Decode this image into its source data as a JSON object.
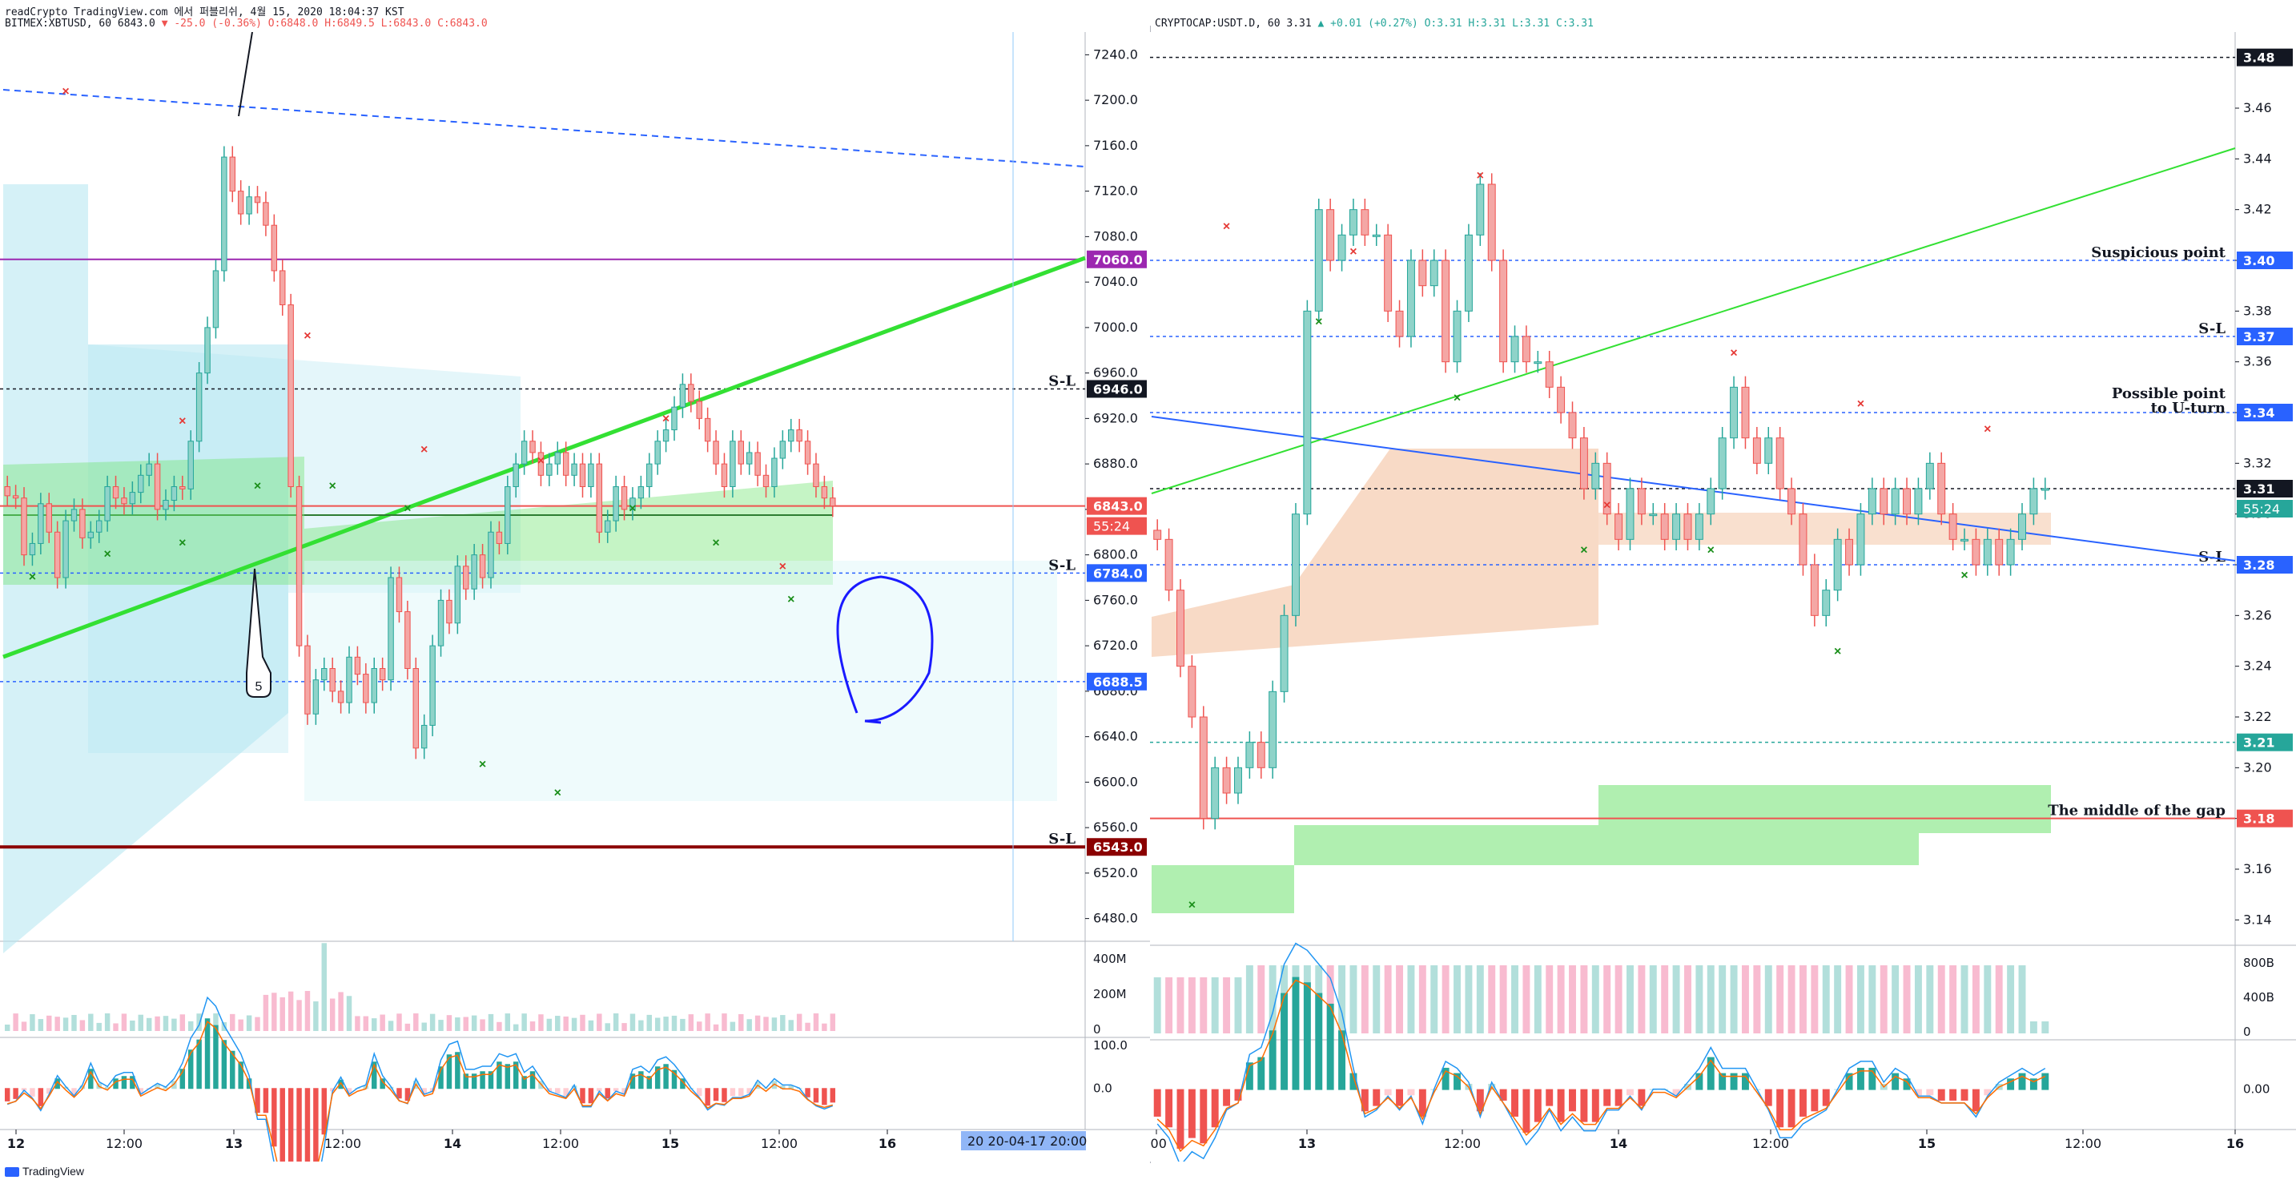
{
  "left_header": {
    "line1": "readCrypto TradingView.com 에서 퍼블리쉬, 4월 15, 2020 18:04:37 KST",
    "symbol": "BITMEX:XBTUSD, 60",
    "last": "6843.0",
    "change": "▼ -25.0 (-0.36%)",
    "ohlc": "O:6848.0 H:6849.5 L:6843.0 C:6843.0"
  },
  "right_header": {
    "symbol": "CRYPTOCAP:USDT.D, 60",
    "last": "3.31",
    "change": "▲ +0.01 (+0.27%)",
    "ohlc": "O:3.31 H:3.31 L:3.31 C:3.31"
  },
  "footer": {
    "brand": "TradingView"
  },
  "colors": {
    "up": "#26a69a",
    "down": "#ef5350",
    "purple": "#9c27b0",
    "green_line": "#00e600",
    "blue": "#2962ff",
    "darkred": "#8b0000"
  },
  "chart_data": [
    {
      "type": "candlestick",
      "symbol": "BITMEX:XBTUSD",
      "interval": "60",
      "ylim": [
        6460,
        7260
      ],
      "y_ticks": [
        6480,
        6520,
        6560,
        6600,
        6640,
        6680,
        6720,
        6760,
        6800,
        6840,
        6880,
        6920,
        6960,
        7000,
        7040,
        7080,
        7120,
        7160,
        7200,
        7240
      ],
      "x_labels": [
        "12",
        "12:00",
        "13",
        "12:00",
        "14",
        "12:00",
        "15",
        "12:00",
        "16"
      ],
      "cursor_label": "20 20-04-17   20:00",
      "close": [
        6852,
        6850,
        6800,
        6810,
        6845,
        6820,
        6780,
        6830,
        6840,
        6815,
        6820,
        6830,
        6860,
        6850,
        6845,
        6855,
        6870,
        6880,
        6840,
        6848,
        6860,
        6858,
        6900,
        6960,
        7000,
        7050,
        7150,
        7120,
        7100,
        7115,
        7110,
        7090,
        7050,
        7020,
        6860,
        6720,
        6660,
        6690,
        6700,
        6680,
        6670,
        6710,
        6695,
        6670,
        6700,
        6690,
        6780,
        6750,
        6700,
        6630,
        6650,
        6720,
        6760,
        6740,
        6790,
        6770,
        6800,
        6780,
        6820,
        6810,
        6860,
        6880,
        6900,
        6890,
        6870,
        6880,
        6890,
        6870,
        6880,
        6860,
        6880,
        6820,
        6830,
        6860,
        6840,
        6850,
        6860,
        6880,
        6900,
        6910,
        6930,
        6950,
        6935,
        6920,
        6900,
        6880,
        6860,
        6900,
        6880,
        6890,
        6870,
        6860,
        6885,
        6900,
        6910,
        6900,
        6880,
        6860,
        6850,
        6843
      ],
      "markers_red_x": [
        7200,
        6910,
        6985,
        6885,
        6875,
        6912,
        6782
      ],
      "markers_green_x": [
        6790,
        6810,
        6820,
        6870,
        6870,
        6850,
        6625,
        6600,
        6850,
        6820,
        6770
      ],
      "horizontal_levels": [
        {
          "value": 7060.0,
          "label": "7060.0",
          "color": "#9c27b0"
        },
        {
          "value": 6946.0,
          "label": "6946.0",
          "color": "#131722",
          "tag": "S-L"
        },
        {
          "value": 6843.0,
          "label": "6843.0",
          "color": "#ef5350"
        },
        {
          "value": 6784.0,
          "label": "6784.0",
          "color": "#2962ff",
          "tag": "S-L"
        },
        {
          "value": 6688.5,
          "label": "6688.5",
          "color": "#2962ff"
        },
        {
          "value": 6543.0,
          "label": "6543.0",
          "color": "#8b0000",
          "tag": "S-L"
        }
      ],
      "countdown": "55:24",
      "annotation_number": "5",
      "volume": {
        "y_ticks": [
          "400M",
          "200M",
          "0"
        ]
      },
      "macd": {
        "y_ticks": [
          "100.0",
          "0.0"
        ]
      }
    },
    {
      "type": "candlestick",
      "symbol": "CRYPTOCAP:USDT.D",
      "interval": "60",
      "ylim": [
        3.13,
        3.49
      ],
      "y_ticks": [
        3.14,
        3.16,
        3.18,
        3.2,
        3.22,
        3.24,
        3.26,
        3.28,
        3.3,
        3.32,
        3.34,
        3.36,
        3.38,
        3.4,
        3.42,
        3.44,
        3.46
      ],
      "x_labels": [
        ":00",
        "13",
        "12:00",
        "14",
        "12:00",
        "15",
        "12:00",
        "16"
      ],
      "close": [
        3.29,
        3.27,
        3.24,
        3.22,
        3.18,
        3.2,
        3.19,
        3.2,
        3.21,
        3.2,
        3.23,
        3.26,
        3.3,
        3.38,
        3.42,
        3.4,
        3.41,
        3.42,
        3.41,
        3.41,
        3.38,
        3.37,
        3.4,
        3.39,
        3.4,
        3.36,
        3.38,
        3.41,
        3.43,
        3.4,
        3.36,
        3.37,
        3.36,
        3.36,
        3.35,
        3.34,
        3.33,
        3.31,
        3.32,
        3.3,
        3.29,
        3.31,
        3.3,
        3.3,
        3.29,
        3.3,
        3.29,
        3.3,
        3.31,
        3.33,
        3.35,
        3.33,
        3.32,
        3.33,
        3.31,
        3.3,
        3.28,
        3.26,
        3.27,
        3.29,
        3.28,
        3.3,
        3.31,
        3.3,
        3.31,
        3.3,
        3.31,
        3.32,
        3.3,
        3.29,
        3.29,
        3.28,
        3.29,
        3.28,
        3.29,
        3.3,
        3.31,
        3.31
      ],
      "markers_red_x": [
        3.41,
        3.4,
        3.43,
        3.3,
        3.36,
        3.34,
        3.33
      ],
      "markers_green_x": [
        3.15,
        3.38,
        3.35,
        3.29,
        3.29,
        3.25,
        3.28
      ],
      "horizontal_levels": [
        {
          "value": 3.48,
          "label": "3.48",
          "color": "#131722"
        },
        {
          "value": 3.4,
          "label": "3.40",
          "color": "#2962ff",
          "tag": "Suspicious point"
        },
        {
          "value": 3.37,
          "label": "3.37",
          "color": "#2962ff",
          "tag": "S-L"
        },
        {
          "value": 3.34,
          "label": "3.34",
          "color": "#2962ff",
          "tag": "Possible point\nto U-turn"
        },
        {
          "value": 3.31,
          "label": "3.31",
          "color": "#131722"
        },
        {
          "value": 3.28,
          "label": "3.28",
          "color": "#2962ff",
          "tag": "S-L"
        },
        {
          "value": 3.21,
          "label": "3.21",
          "color": "#26a69a"
        },
        {
          "value": 3.18,
          "label": "3.18",
          "color": "#ef5350",
          "tag": "The middle of the gap"
        }
      ],
      "price_tag": "3.31",
      "countdown": "55:24",
      "volume": {
        "y_ticks": [
          "800B",
          "400B",
          "0"
        ]
      },
      "macd": {
        "y_ticks": [
          "0.00"
        ]
      }
    }
  ]
}
